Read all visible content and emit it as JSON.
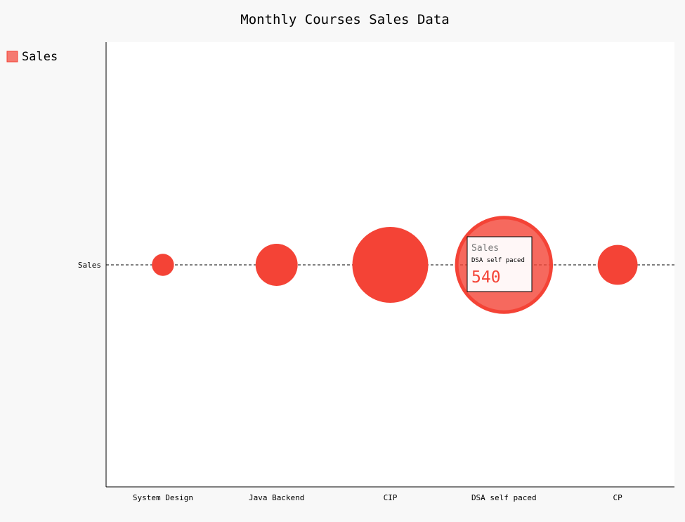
{
  "chart_data": {
    "type": "dot",
    "title": "Monthly Courses Sales Data",
    "categories": [
      "System Design",
      "Java Backend",
      "CIP",
      "DSA self paced",
      "CP"
    ],
    "series": [
      {
        "name": "Sales",
        "values": [
          55,
          200,
          650,
          540,
          180
        ]
      }
    ],
    "y_categories": [
      "Sales"
    ],
    "legend": "top-left",
    "color": "#f44336",
    "tooltip": {
      "series": "Sales",
      "category": "DSA self paced",
      "value": "540"
    }
  }
}
